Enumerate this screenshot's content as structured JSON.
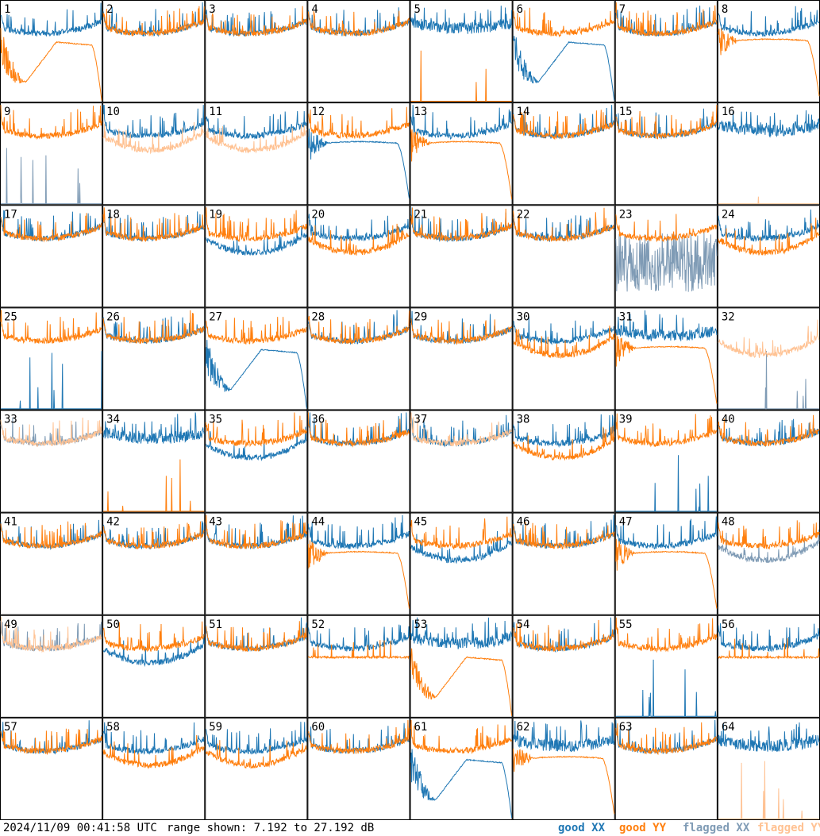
{
  "footer": {
    "timestamp": "2024/11/09 00:41:58 UTC",
    "range": "range shown: 7.192 to 27.192 dB"
  },
  "legend": [
    {
      "key": "good_xx",
      "label": "good XX",
      "color": "#1f77b4"
    },
    {
      "key": "good_yy",
      "label": "good YY",
      "color": "#ff7f0e"
    },
    {
      "key": "flagged_xx",
      "label": "flagged XX",
      "color": "#7f9bb5"
    },
    {
      "key": "flagged_yy",
      "label": "flagged YY",
      "color": "#ffc293"
    }
  ],
  "chart_data": {
    "type": "line",
    "layout": "8x8 small multiples of antenna bandpass power",
    "x_axis": "frequency channel (unlabeled)",
    "y_unit": "dB",
    "ylim": [
      7.192,
      27.192
    ],
    "grid": false,
    "panels": [
      {
        "id": 1,
        "xx": {
          "s": "normal",
          "f": false
        },
        "yy": {
          "s": "droop_bowl",
          "f": false
        }
      },
      {
        "id": 2,
        "xx": {
          "s": "normal",
          "f": false
        },
        "yy": {
          "s": "normal",
          "f": false
        }
      },
      {
        "id": 3,
        "xx": {
          "s": "normal",
          "f": false
        },
        "yy": {
          "s": "normal",
          "f": false
        }
      },
      {
        "id": 4,
        "xx": {
          "s": "normal",
          "f": false
        },
        "yy": {
          "s": "normal",
          "f": false
        }
      },
      {
        "id": 5,
        "xx": {
          "s": "high_noisy",
          "f": false
        },
        "yy": {
          "s": "dead_spikes",
          "f": false
        }
      },
      {
        "id": 6,
        "xx": {
          "s": "droop_bowl",
          "f": false
        },
        "yy": {
          "s": "normal",
          "f": false
        }
      },
      {
        "id": 7,
        "xx": {
          "s": "normal",
          "f": false
        },
        "yy": {
          "s": "normal",
          "f": false
        }
      },
      {
        "id": 8,
        "xx": {
          "s": "normal",
          "f": false
        },
        "yy": {
          "s": "droop_smooth",
          "f": false
        }
      },
      {
        "id": 9,
        "xx": {
          "s": "dead_spikes",
          "f": true
        },
        "yy": {
          "s": "normal",
          "f": false
        }
      },
      {
        "id": 10,
        "xx": {
          "s": "normal",
          "f": false
        },
        "yy": {
          "s": "low_bowl",
          "f": true
        }
      },
      {
        "id": 11,
        "xx": {
          "s": "normal",
          "f": false
        },
        "yy": {
          "s": "low_bowl",
          "f": true
        }
      },
      {
        "id": 12,
        "xx": {
          "s": "droop_smooth",
          "f": false
        },
        "yy": {
          "s": "normal",
          "f": false
        }
      },
      {
        "id": 13,
        "xx": {
          "s": "normal",
          "f": false
        },
        "yy": {
          "s": "droop_smooth",
          "f": false
        }
      },
      {
        "id": 14,
        "xx": {
          "s": "normal",
          "f": false
        },
        "yy": {
          "s": "normal",
          "f": false
        }
      },
      {
        "id": 15,
        "xx": {
          "s": "normal",
          "f": false
        },
        "yy": {
          "s": "normal",
          "f": false
        }
      },
      {
        "id": 16,
        "xx": {
          "s": "high_noisy",
          "f": false
        },
        "yy": {
          "s": "dead_spikes",
          "f": true
        }
      },
      {
        "id": 17,
        "xx": {
          "s": "normal",
          "f": false
        },
        "yy": {
          "s": "normal",
          "f": false
        }
      },
      {
        "id": 18,
        "xx": {
          "s": "normal",
          "f": false
        },
        "yy": {
          "s": "normal",
          "f": false
        }
      },
      {
        "id": 19,
        "xx": {
          "s": "low_bowl",
          "f": false
        },
        "yy": {
          "s": "normal",
          "f": false
        }
      },
      {
        "id": 20,
        "xx": {
          "s": "normal",
          "f": false
        },
        "yy": {
          "s": "low_bowl",
          "f": false
        }
      },
      {
        "id": 21,
        "xx": {
          "s": "normal",
          "f": false
        },
        "yy": {
          "s": "normal",
          "f": false
        }
      },
      {
        "id": 22,
        "xx": {
          "s": "normal",
          "f": false
        },
        "yy": {
          "s": "normal",
          "f": false
        }
      },
      {
        "id": 23,
        "xx": {
          "s": "erratic_low",
          "f": true
        },
        "yy": {
          "s": "normal",
          "f": false
        }
      },
      {
        "id": 24,
        "xx": {
          "s": "normal",
          "f": false
        },
        "yy": {
          "s": "low_bowl",
          "f": false
        }
      },
      {
        "id": 25,
        "xx": {
          "s": "dead_spikes",
          "f": false
        },
        "yy": {
          "s": "normal",
          "f": false
        }
      },
      {
        "id": 26,
        "xx": {
          "s": "normal",
          "f": false
        },
        "yy": {
          "s": "normal",
          "f": false
        }
      },
      {
        "id": 27,
        "xx": {
          "s": "droop_bowl",
          "f": false
        },
        "yy": {
          "s": "normal",
          "f": false
        }
      },
      {
        "id": 28,
        "xx": {
          "s": "normal",
          "f": false
        },
        "yy": {
          "s": "normal",
          "f": false
        }
      },
      {
        "id": 29,
        "xx": {
          "s": "normal",
          "f": false
        },
        "yy": {
          "s": "normal",
          "f": false
        }
      },
      {
        "id": 30,
        "xx": {
          "s": "normal",
          "f": false
        },
        "yy": {
          "s": "low_bowl",
          "f": false
        }
      },
      {
        "id": 31,
        "xx": {
          "s": "high_noisy",
          "f": false
        },
        "yy": {
          "s": "droop_smooth",
          "f": false
        }
      },
      {
        "id": 32,
        "xx": {
          "s": "dead_spikes",
          "f": true
        },
        "yy": {
          "s": "low_bowl",
          "f": true
        }
      },
      {
        "id": 33,
        "xx": {
          "s": "normal",
          "f": true
        },
        "yy": {
          "s": "normal",
          "f": true
        }
      },
      {
        "id": 34,
        "xx": {
          "s": "high_noisy",
          "f": false
        },
        "yy": {
          "s": "dead_spikes",
          "f": false
        }
      },
      {
        "id": 35,
        "xx": {
          "s": "low_bowl",
          "f": false
        },
        "yy": {
          "s": "normal",
          "f": false
        }
      },
      {
        "id": 36,
        "xx": {
          "s": "normal",
          "f": false
        },
        "yy": {
          "s": "normal",
          "f": false
        }
      },
      {
        "id": 37,
        "xx": {
          "s": "normal",
          "f": false
        },
        "yy": {
          "s": "normal",
          "f": true
        }
      },
      {
        "id": 38,
        "xx": {
          "s": "normal",
          "f": false
        },
        "yy": {
          "s": "low_bowl",
          "f": false
        }
      },
      {
        "id": 39,
        "xx": {
          "s": "dead_spikes",
          "f": false
        },
        "yy": {
          "s": "normal",
          "f": false
        }
      },
      {
        "id": 40,
        "xx": {
          "s": "normal",
          "f": false
        },
        "yy": {
          "s": "normal",
          "f": false
        }
      },
      {
        "id": 41,
        "xx": {
          "s": "normal",
          "f": false
        },
        "yy": {
          "s": "normal",
          "f": false
        }
      },
      {
        "id": 42,
        "xx": {
          "s": "normal",
          "f": false
        },
        "yy": {
          "s": "normal",
          "f": false
        }
      },
      {
        "id": 43,
        "xx": {
          "s": "normal",
          "f": false
        },
        "yy": {
          "s": "normal",
          "f": false
        }
      },
      {
        "id": 44,
        "xx": {
          "s": "normal",
          "f": false
        },
        "yy": {
          "s": "droop_smooth",
          "f": false
        }
      },
      {
        "id": 45,
        "xx": {
          "s": "low_bowl",
          "f": false
        },
        "yy": {
          "s": "normal",
          "f": false
        }
      },
      {
        "id": 46,
        "xx": {
          "s": "normal",
          "f": false
        },
        "yy": {
          "s": "normal",
          "f": false
        }
      },
      {
        "id": 47,
        "xx": {
          "s": "normal",
          "f": false
        },
        "yy": {
          "s": "droop_smooth",
          "f": false
        }
      },
      {
        "id": 48,
        "xx": {
          "s": "low_bowl",
          "f": true
        },
        "yy": {
          "s": "normal",
          "f": false
        }
      },
      {
        "id": 49,
        "xx": {
          "s": "normal",
          "f": true
        },
        "yy": {
          "s": "normal",
          "f": true
        }
      },
      {
        "id": 50,
        "xx": {
          "s": "low_bowl",
          "f": false
        },
        "yy": {
          "s": "normal",
          "f": false
        }
      },
      {
        "id": 51,
        "xx": {
          "s": "normal",
          "f": false
        },
        "yy": {
          "s": "normal",
          "f": false
        }
      },
      {
        "id": 52,
        "xx": {
          "s": "normal",
          "f": false
        },
        "yy": {
          "s": "flat_mid",
          "f": false
        }
      },
      {
        "id": 53,
        "xx": {
          "s": "high_noisy",
          "f": false
        },
        "yy": {
          "s": "droop_bowl",
          "f": false
        }
      },
      {
        "id": 54,
        "xx": {
          "s": "normal",
          "f": false
        },
        "yy": {
          "s": "normal",
          "f": false
        }
      },
      {
        "id": 55,
        "xx": {
          "s": "dead_spikes",
          "f": false
        },
        "yy": {
          "s": "normal",
          "f": false
        }
      },
      {
        "id": 56,
        "xx": {
          "s": "normal",
          "f": false
        },
        "yy": {
          "s": "flat_mid",
          "f": false
        }
      },
      {
        "id": 57,
        "xx": {
          "s": "normal",
          "f": false
        },
        "yy": {
          "s": "normal",
          "f": false
        }
      },
      {
        "id": 58,
        "xx": {
          "s": "normal",
          "f": false
        },
        "yy": {
          "s": "low_bowl",
          "f": false
        }
      },
      {
        "id": 59,
        "xx": {
          "s": "normal",
          "f": false
        },
        "yy": {
          "s": "low_bowl",
          "f": false
        }
      },
      {
        "id": 60,
        "xx": {
          "s": "normal",
          "f": false
        },
        "yy": {
          "s": "normal",
          "f": false
        }
      },
      {
        "id": 61,
        "xx": {
          "s": "droop_bowl",
          "f": false
        },
        "yy": {
          "s": "normal",
          "f": false
        }
      },
      {
        "id": 62,
        "xx": {
          "s": "high_noisy",
          "f": false
        },
        "yy": {
          "s": "droop_smooth",
          "f": false
        }
      },
      {
        "id": 63,
        "xx": {
          "s": "normal",
          "f": false
        },
        "yy": {
          "s": "normal",
          "f": false
        }
      },
      {
        "id": 64,
        "xx": {
          "s": "high_noisy",
          "f": false
        },
        "yy": {
          "s": "dead_spikes",
          "f": true
        }
      }
    ]
  }
}
